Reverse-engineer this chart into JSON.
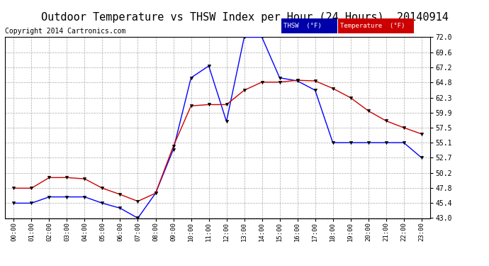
{
  "title": "Outdoor Temperature vs THSW Index per Hour (24 Hours)  20140914",
  "copyright": "Copyright 2014 Cartronics.com",
  "hours": [
    "00:00",
    "01:00",
    "02:00",
    "03:00",
    "04:00",
    "05:00",
    "06:00",
    "07:00",
    "08:00",
    "09:00",
    "10:00",
    "11:00",
    "12:00",
    "13:00",
    "14:00",
    "15:00",
    "16:00",
    "17:00",
    "18:00",
    "19:00",
    "20:00",
    "21:00",
    "22:00",
    "23:00"
  ],
  "thsw": [
    45.4,
    45.4,
    46.4,
    46.4,
    46.4,
    45.4,
    44.6,
    43.0,
    47.0,
    54.0,
    65.5,
    67.4,
    58.5,
    72.0,
    72.0,
    65.5,
    65.0,
    63.5,
    55.1,
    55.1,
    55.1,
    55.1,
    55.1,
    52.7
  ],
  "temperature": [
    47.8,
    47.8,
    49.5,
    49.5,
    49.3,
    47.8,
    46.8,
    45.7,
    47.0,
    54.5,
    61.0,
    61.2,
    61.2,
    63.5,
    64.8,
    64.8,
    65.1,
    65.0,
    63.8,
    62.3,
    60.2,
    58.6,
    57.5,
    56.5
  ],
  "ylim": [
    43.0,
    72.0
  ],
  "yticks": [
    43.0,
    45.4,
    47.8,
    50.2,
    52.7,
    55.1,
    57.5,
    59.9,
    62.3,
    64.8,
    67.2,
    69.6,
    72.0
  ],
  "thsw_color": "#0000ff",
  "temp_color": "#cc0000",
  "bg_color": "#ffffff",
  "legend_thsw_bg": "#0000aa",
  "legend_temp_bg": "#cc0000",
  "title_fontsize": 11,
  "copyright_fontsize": 7
}
